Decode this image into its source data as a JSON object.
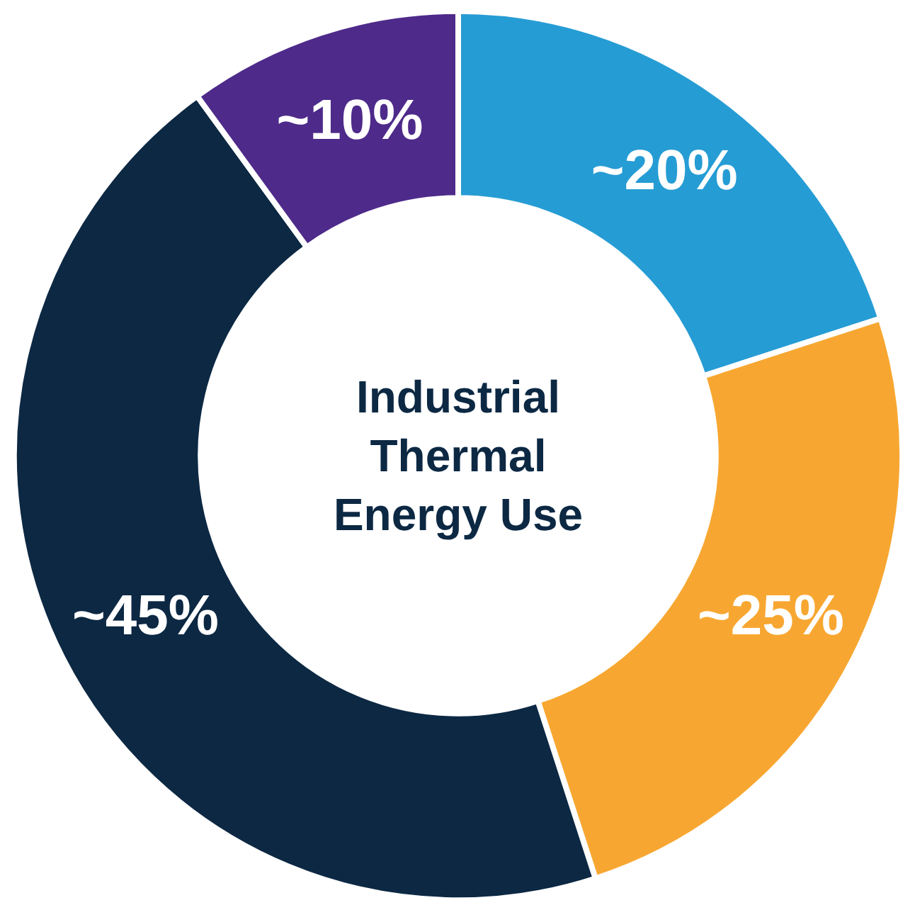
{
  "chart_data": {
    "type": "donut",
    "title": "Industrial\nThermal\nEnergy Use",
    "categories": [
      null,
      null,
      null,
      null
    ],
    "values": [
      20,
      25,
      45,
      10
    ],
    "colors": [
      "#269cd4",
      "#f7a731",
      "#0c2843",
      "#4e2a8a"
    ],
    "value_labels": [
      "~20%",
      "~25%",
      "~45%",
      "~10%"
    ]
  }
}
